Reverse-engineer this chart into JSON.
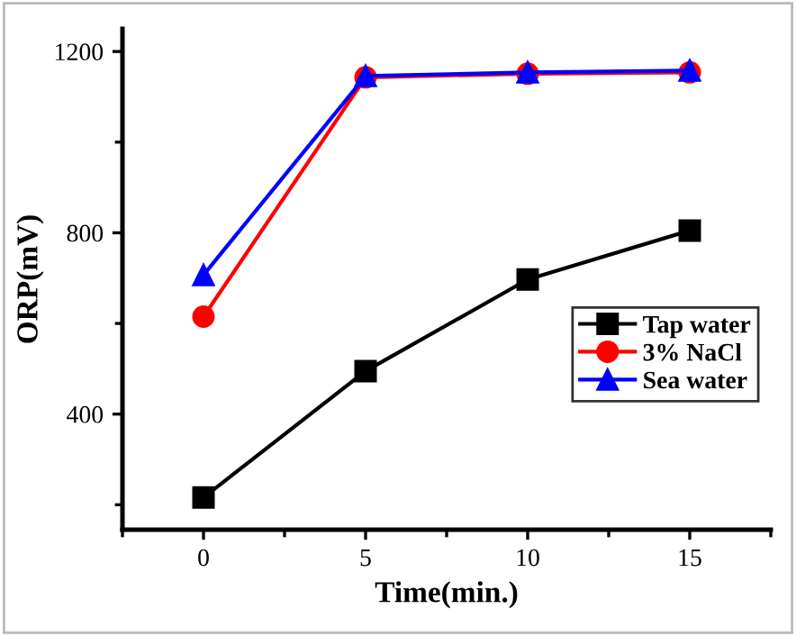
{
  "chart_data": {
    "type": "line",
    "xlabel": "Time(min.)",
    "ylabel": "ORP(mV)",
    "x": [
      0,
      5,
      10,
      15
    ],
    "series": [
      {
        "name": "Tap water",
        "color": "#000000",
        "marker": "square",
        "values": [
          216,
          495,
          697,
          805
        ]
      },
      {
        "name": "3% NaCl",
        "color": "#ff0000",
        "marker": "circle",
        "values": [
          615,
          1143,
          1151,
          1154
        ]
      },
      {
        "name": "Sea water",
        "color": "#0000ff",
        "marker": "triangle",
        "values": [
          707,
          1146,
          1154,
          1158
        ]
      }
    ],
    "xlim": [
      -2.5,
      17.5
    ],
    "xticks": [
      0,
      5,
      10,
      15
    ],
    "ylim": [
      145,
      1250
    ],
    "yticks": [
      400,
      800,
      1200
    ],
    "grid": false,
    "legend": "right",
    "line_style": "solid"
  }
}
